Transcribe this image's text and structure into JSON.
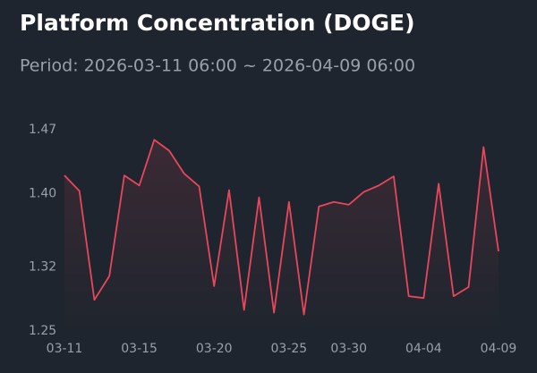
{
  "chart_data": {
    "type": "line",
    "title": "Platform Concentration (DOGE)",
    "subtitle": "Period: 2026-03-11 06:00 ~ 2026-04-09 06:00",
    "categories": [
      "03-11",
      null,
      null,
      null,
      null,
      "03-15",
      null,
      null,
      null,
      null,
      "03-20",
      null,
      null,
      null,
      null,
      "03-25",
      null,
      null,
      null,
      "03-30",
      null,
      null,
      null,
      null,
      "04-04",
      null,
      null,
      null,
      null,
      "04-09"
    ],
    "series": [
      {
        "name": "DOGE",
        "color": "#e8475b",
        "values": [
          1.42,
          1.403,
          1.284,
          1.31,
          1.42,
          1.409,
          1.459,
          1.447,
          1.422,
          1.408,
          1.299,
          1.404,
          1.273,
          1.396,
          1.27,
          1.391,
          1.268,
          1.386,
          1.391,
          1.388,
          1.402,
          1.409,
          1.419,
          1.288,
          1.286,
          1.411,
          1.288,
          1.298,
          1.451,
          1.337
        ]
      }
    ],
    "ylim": [
      1.25,
      1.47
    ],
    "yticks": [
      1.25,
      1.32,
      {
        "value": 1.4,
        "label": "1.40"
      },
      1.47
    ]
  }
}
